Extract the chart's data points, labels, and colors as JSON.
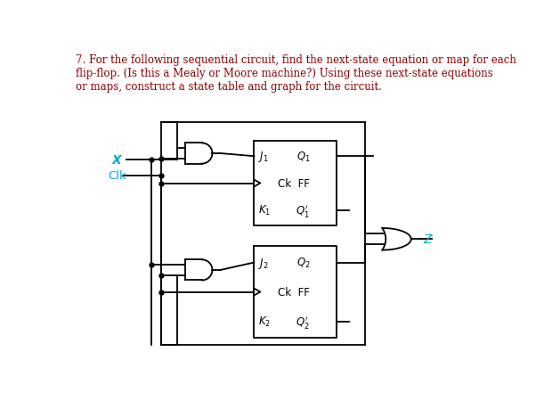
{
  "title_text": "7. For the following sequential circuit, find the next-state equation or map for each\nflip-flop. (Is this a Mealy or Moore machine?) Using these next-state equations\nor maps, construct a state table and graph for the circuit.",
  "title_color": "#8B0000",
  "bg_color": "#ffffff",
  "label_X": "X",
  "label_Clk": "Clk",
  "label_Z": "Z",
  "cyan_color": "#00AACC",
  "black_color": "#000000"
}
